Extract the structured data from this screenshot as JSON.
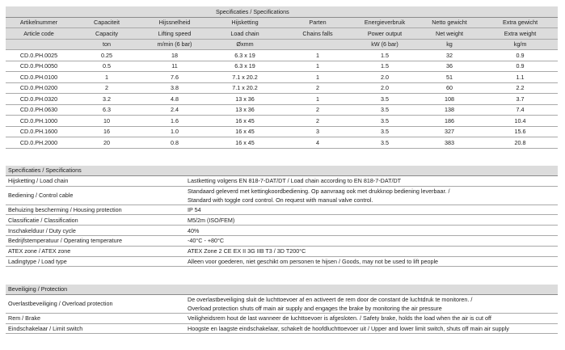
{
  "specs_table": {
    "title": "Specificaties / Specifications",
    "headers_nl": [
      "Artikelnummer",
      "Capaciteit",
      "Hijssnelheid",
      "Hijsketting",
      "Parten",
      "Energieverbruik",
      "Netto gewicht",
      "Extra gewicht"
    ],
    "headers_en": [
      "Article code",
      "Capacity",
      "Lifting speed",
      "Load chain",
      "Chains falls",
      "Power output",
      "Net weight",
      "Extra weight"
    ],
    "units": [
      "",
      "ton",
      "m/min (6 bar)",
      "Øxmm",
      "",
      "kW (6 bar)",
      "kg",
      "kg/m"
    ],
    "rows": [
      [
        "CD.0.PH.0025",
        "0.25",
        "18",
        "6.3 x 19",
        "1",
        "1.5",
        "32",
        "0.9"
      ],
      [
        "CD.0.PH.0050",
        "0.5",
        "11",
        "6.3 x 19",
        "1",
        "1.5",
        "36",
        "0.9"
      ],
      [
        "CD.0.PH.0100",
        "1",
        "7.6",
        "7.1 x 20.2",
        "1",
        "2.0",
        "51",
        "1.1"
      ],
      [
        "CD.0.PH.0200",
        "2",
        "3.8",
        "7.1 x 20.2",
        "2",
        "2.0",
        "60",
        "2.2"
      ],
      [
        "CD.0.PH.0320",
        "3.2",
        "4.8",
        "13 x 36",
        "1",
        "3.5",
        "108",
        "3.7"
      ],
      [
        "CD.0.PH.0630",
        "6.3",
        "2.4",
        "13 x 36",
        "2",
        "3.5",
        "138",
        "7.4"
      ],
      [
        "CD.0.PH.1000",
        "10",
        "1.6",
        "16 x 45",
        "2",
        "3.5",
        "186",
        "10.4"
      ],
      [
        "CD.0.PH.1600",
        "16",
        "1.0",
        "16 x 45",
        "3",
        "3.5",
        "327",
        "15.6"
      ],
      [
        "CD.0.PH.2000",
        "20",
        "0.8",
        "16 x 45",
        "4",
        "3.5",
        "383",
        "20.8"
      ]
    ]
  },
  "general_table": {
    "title": "Specificaties / Specifications",
    "rows": [
      {
        "label": "Hijsketting / Load chain",
        "value": [
          "Lastketting volgens EN 818-7-DAT/DT / Load chain according to EN 818-7-DAT/DT"
        ]
      },
      {
        "label": "Bediening / Control cable",
        "value": [
          "Standaard geleverd met kettingkoordbediening. Op aanvraag ook met drukknop bediening leverbaar. /",
          "Standard with toggle cord control. On request with manual valve control."
        ]
      },
      {
        "label": "Behuizing bescherming / Housing protection",
        "value": [
          "IP 54"
        ]
      },
      {
        "label": "Classificatie / Classification",
        "value": [
          "M5/2m (ISO/FEM)"
        ]
      },
      {
        "label": "Inschakelduur / Duty cycle",
        "value": [
          "40%"
        ]
      },
      {
        "label": "Bedrijfstemperatuur / Operating temperature",
        "value": [
          "-40°C  -  +80°C"
        ]
      },
      {
        "label": "ATEX zone / ATEX zone",
        "value": [
          "ATEX Zone 2 CE EX II 3G IIB T3 / 3D T200°C"
        ]
      },
      {
        "label": "Ladingtype / Load type",
        "value": [
          "Alleen voor goederen, niet geschikt om personen te hijsen / Goods, may not be used to lift people"
        ]
      }
    ]
  },
  "protection_table": {
    "title": "Beveiliging / Protection",
    "rows": [
      {
        "label": "Overlastbeveiliging / Overload protection",
        "value": [
          "De overlastbeveiliging  sluit de luchttoevoer af en activeert de rem door de constant de luchtdruk te monitoren. /",
          "Overload protection shuts off main air supply and engages the brake by monitoring the air pressure"
        ]
      },
      {
        "label": "Rem / Brake",
        "value": [
          "Veiligheidsrem hout de last wanneer de luchttoevoer is afgesloten. / Safety brake, holds the load when the air is cut off"
        ]
      },
      {
        "label": "Eindschakelaar / Limit switch",
        "value": [
          "Hoogste en laagste eindschakelaar, schakelt de hoofdluchttoevoer uit / Upper and lower limit switch, shuts off main air supply"
        ]
      }
    ]
  }
}
